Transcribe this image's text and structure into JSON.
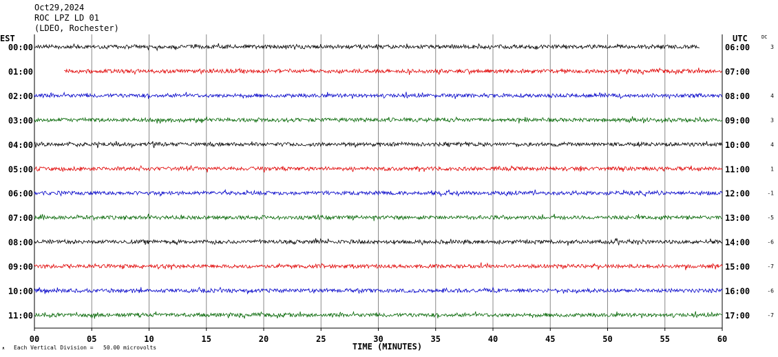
{
  "header": {
    "date": "Oct29,2024",
    "station": "ROC LPZ LD 01",
    "network": "(LDEO, Rochester)"
  },
  "footer": {
    "scale_note": "Each Vertical Division =   50.00 microvolts",
    "corner_mark": "ᴥ"
  },
  "chart_data": {
    "type": "line",
    "title": "",
    "xlabel": "TIME (MINUTES)",
    "xlim": [
      0,
      60
    ],
    "xticks": [
      "00",
      "05",
      "10",
      "15",
      "20",
      "25",
      "30",
      "35",
      "40",
      "45",
      "50",
      "55",
      "60"
    ],
    "left_axis_label": "EST",
    "right_axis_label": "UTC",
    "dc_label": "DC",
    "grid": "vertical every 5 minutes",
    "colors": [
      "#000000",
      "#e00000",
      "#0000c8",
      "#006400"
    ],
    "series": [
      {
        "est": "00:00",
        "utc": "06:00",
        "dc": "3",
        "color": "#000000",
        "start_min": 0.0,
        "end_min": 58.0
      },
      {
        "est": "01:00",
        "utc": "07:00",
        "dc": "",
        "color": "#e00000",
        "start_min": 2.6,
        "end_min": 60.0
      },
      {
        "est": "02:00",
        "utc": "08:00",
        "dc": "4",
        "color": "#0000c8",
        "start_min": 0.0,
        "end_min": 60.0
      },
      {
        "est": "03:00",
        "utc": "09:00",
        "dc": "3",
        "color": "#006400",
        "start_min": 0.0,
        "end_min": 60.0
      },
      {
        "est": "04:00",
        "utc": "10:00",
        "dc": "4",
        "color": "#000000",
        "start_min": 0.0,
        "end_min": 60.0
      },
      {
        "est": "05:00",
        "utc": "11:00",
        "dc": "1",
        "color": "#e00000",
        "start_min": 0.0,
        "end_min": 60.0
      },
      {
        "est": "06:00",
        "utc": "12:00",
        "dc": "-1",
        "color": "#0000c8",
        "start_min": 0.0,
        "end_min": 60.0
      },
      {
        "est": "07:00",
        "utc": "13:00",
        "dc": "-5",
        "color": "#006400",
        "start_min": 0.0,
        "end_min": 60.0
      },
      {
        "est": "08:00",
        "utc": "14:00",
        "dc": "-6",
        "color": "#000000",
        "start_min": 0.0,
        "end_min": 60.0
      },
      {
        "est": "09:00",
        "utc": "15:00",
        "dc": "-7",
        "color": "#e00000",
        "start_min": 0.0,
        "end_min": 60.0
      },
      {
        "est": "10:00",
        "utc": "16:00",
        "dc": "-6",
        "color": "#0000c8",
        "start_min": 0.0,
        "end_min": 60.0
      },
      {
        "est": "11:00",
        "utc": "17:00",
        "dc": "-7",
        "color": "#006400",
        "start_min": 0.0,
        "end_min": 60.0
      }
    ]
  }
}
